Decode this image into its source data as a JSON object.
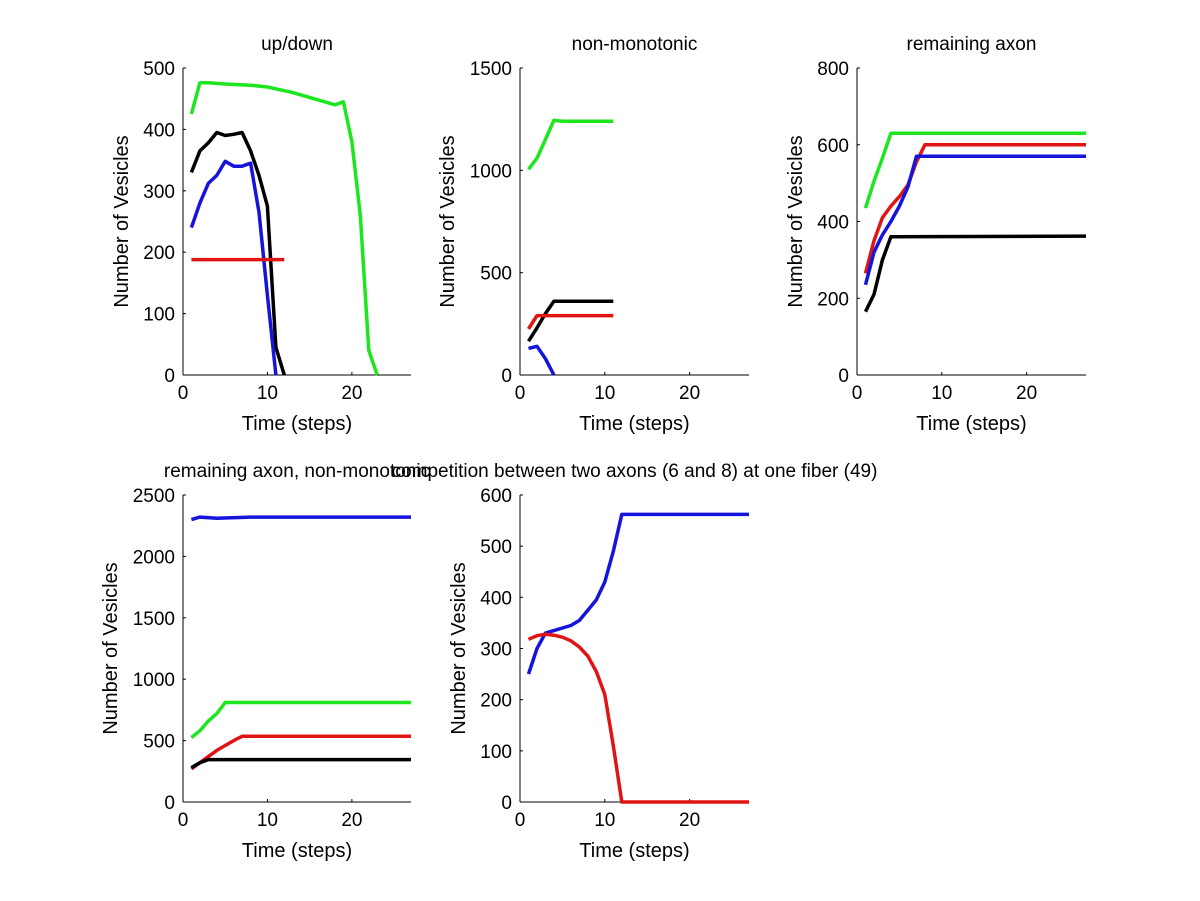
{
  "colors": {
    "green": "#1ee61e",
    "black": "#000000",
    "blue": "#1414dc",
    "red": "#e11414"
  },
  "chart_data": [
    {
      "type": "line",
      "title": "up/down",
      "xlabel": "Time (steps)",
      "ylabel": "Number of Vesicles",
      "xlim": [
        0,
        27
      ],
      "ylim": [
        0,
        500
      ],
      "xticks": [
        0,
        10,
        20
      ],
      "yticks": [
        0,
        100,
        200,
        300,
        400,
        500
      ],
      "series": [
        {
          "name": "green",
          "color": "green",
          "x": [
            1,
            2,
            3,
            5,
            8,
            10,
            13,
            16,
            18,
            19,
            20,
            21,
            22,
            23
          ],
          "y": [
            425,
            476,
            476,
            474,
            472,
            469,
            460,
            448,
            440,
            445,
            380,
            260,
            40,
            0
          ]
        },
        {
          "name": "black",
          "color": "black",
          "x": [
            1,
            2,
            3,
            4,
            5,
            6,
            7,
            8,
            9,
            10,
            11,
            12
          ],
          "y": [
            330,
            365,
            378,
            395,
            390,
            392,
            395,
            365,
            325,
            275,
            45,
            0
          ]
        },
        {
          "name": "blue",
          "color": "blue",
          "x": [
            1,
            2,
            3,
            4,
            5,
            6,
            7,
            8,
            9,
            10,
            11
          ],
          "y": [
            240,
            280,
            312,
            325,
            348,
            340,
            340,
            345,
            265,
            130,
            0
          ]
        },
        {
          "name": "red",
          "color": "red",
          "x": [
            1,
            12
          ],
          "y": [
            188,
            188
          ]
        }
      ]
    },
    {
      "type": "line",
      "title": "non-monotonic",
      "xlabel": "Time (steps)",
      "ylabel": "Number of Vesicles",
      "xlim": [
        0,
        27
      ],
      "ylim": [
        0,
        1500
      ],
      "xticks": [
        0,
        10,
        20
      ],
      "yticks": [
        0,
        500,
        1000,
        1500
      ],
      "series": [
        {
          "name": "green",
          "color": "green",
          "x": [
            1,
            2,
            3,
            4,
            5,
            11
          ],
          "y": [
            1005,
            1060,
            1150,
            1245,
            1240,
            1240
          ]
        },
        {
          "name": "black",
          "color": "black",
          "x": [
            1,
            2,
            3,
            4,
            11
          ],
          "y": [
            165,
            230,
            300,
            360,
            360
          ]
        },
        {
          "name": "red",
          "color": "red",
          "x": [
            1,
            2,
            11
          ],
          "y": [
            225,
            290,
            290
          ]
        },
        {
          "name": "blue",
          "color": "blue",
          "x": [
            1,
            2,
            3,
            4
          ],
          "y": [
            130,
            140,
            80,
            0
          ]
        }
      ]
    },
    {
      "type": "line",
      "title": "remaining axon",
      "xlabel": "Time (steps)",
      "ylabel": "Number of Vesicles",
      "xlim": [
        0,
        27
      ],
      "ylim": [
        0,
        800
      ],
      "xticks": [
        0,
        10,
        20
      ],
      "yticks": [
        0,
        200,
        400,
        600,
        800
      ],
      "series": [
        {
          "name": "green",
          "color": "green",
          "x": [
            1,
            2,
            3,
            4,
            27
          ],
          "y": [
            435,
            505,
            565,
            630,
            630
          ]
        },
        {
          "name": "red",
          "color": "red",
          "x": [
            1,
            2,
            3,
            4,
            5,
            6,
            7,
            8,
            27
          ],
          "y": [
            265,
            350,
            410,
            440,
            465,
            495,
            555,
            600,
            600
          ]
        },
        {
          "name": "blue",
          "color": "blue",
          "x": [
            1,
            2,
            3,
            4,
            5,
            6,
            7,
            27
          ],
          "y": [
            235,
            320,
            365,
            400,
            440,
            490,
            570,
            570
          ]
        },
        {
          "name": "black",
          "color": "black",
          "x": [
            1,
            2,
            3,
            4,
            27
          ],
          "y": [
            165,
            210,
            300,
            360,
            362
          ]
        }
      ]
    },
    {
      "type": "line",
      "title": "remaining axon, non-monotonic",
      "xlabel": "Time (steps)",
      "ylabel": "Number of Vesicles",
      "xlim": [
        0,
        27
      ],
      "ylim": [
        0,
        2500
      ],
      "xticks": [
        0,
        10,
        20
      ],
      "yticks": [
        0,
        500,
        1000,
        1500,
        2000,
        2500
      ],
      "series": [
        {
          "name": "blue",
          "color": "blue",
          "x": [
            1,
            2,
            4,
            8,
            27
          ],
          "y": [
            2300,
            2320,
            2310,
            2320,
            2320
          ]
        },
        {
          "name": "green",
          "color": "green",
          "x": [
            1,
            2,
            3,
            4,
            5,
            27
          ],
          "y": [
            525,
            580,
            660,
            720,
            810,
            810
          ]
        },
        {
          "name": "red",
          "color": "red",
          "x": [
            1,
            2,
            3,
            4,
            5,
            6,
            7,
            27
          ],
          "y": [
            270,
            320,
            370,
            420,
            460,
            500,
            535,
            535
          ]
        },
        {
          "name": "black",
          "color": "black",
          "x": [
            1,
            2,
            3,
            27
          ],
          "y": [
            280,
            320,
            345,
            345
          ]
        }
      ]
    },
    {
      "type": "line",
      "title": "competition between two axons (6 and 8) at one fiber (49)",
      "xlabel": "Time (steps)",
      "ylabel": "Number of Vesicles",
      "xlim": [
        0,
        27
      ],
      "ylim": [
        0,
        600
      ],
      "xticks": [
        0,
        10,
        20
      ],
      "yticks": [
        0,
        100,
        200,
        300,
        400,
        500,
        600
      ],
      "series": [
        {
          "name": "blue",
          "color": "blue",
          "x": [
            1,
            2,
            3,
            4,
            5,
            6,
            7,
            8,
            9,
            10,
            11,
            12,
            27
          ],
          "y": [
            250,
            300,
            330,
            335,
            340,
            345,
            355,
            375,
            395,
            430,
            490,
            562,
            562
          ]
        },
        {
          "name": "red",
          "color": "red",
          "x": [
            1,
            2,
            3,
            4,
            5,
            6,
            7,
            8,
            9,
            10,
            11,
            12,
            27
          ],
          "y": [
            318,
            325,
            328,
            326,
            322,
            315,
            303,
            285,
            255,
            210,
            110,
            0,
            0
          ]
        }
      ]
    }
  ]
}
